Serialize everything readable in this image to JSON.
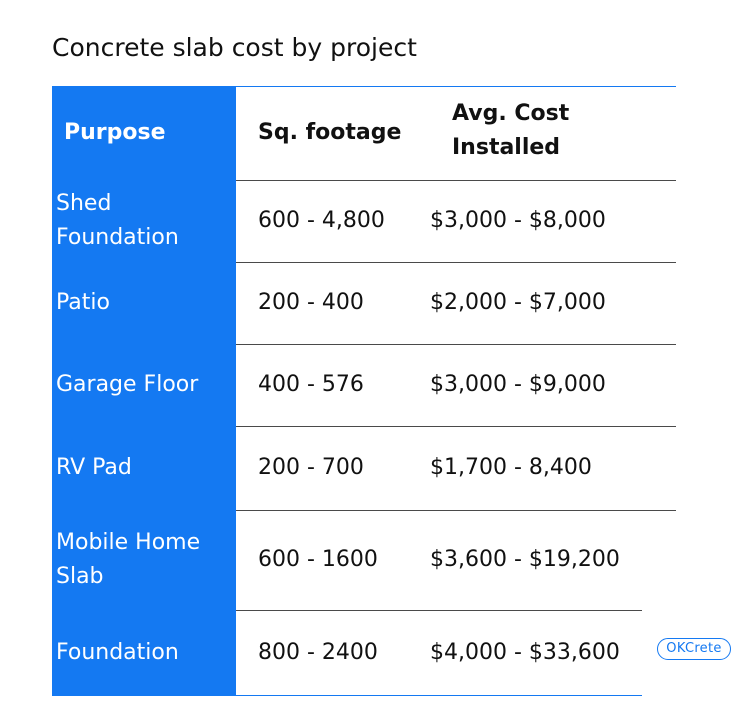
{
  "title": "Concrete slab cost by project",
  "table": {
    "headers": {
      "purpose": "Purpose",
      "sq_footage": "Sq. footage",
      "avg_cost": "Avg. Cost Installed"
    },
    "rows": [
      {
        "purpose": "Shed Foundation",
        "sq_footage": "600 - 4,800",
        "avg_cost": "$3,000 - $8,000"
      },
      {
        "purpose": "Patio",
        "sq_footage": "200 - 400",
        "avg_cost": "$2,000 - $7,000"
      },
      {
        "purpose": "Garage Floor",
        "sq_footage": "400 - 576",
        "avg_cost": "$3,000 - $9,000"
      },
      {
        "purpose": "RV Pad",
        "sq_footage": "200 - 700",
        "avg_cost": "$1,700 - 8,400"
      },
      {
        "purpose": "Mobile Home Slab",
        "sq_footage": "600 - 1600",
        "avg_cost": "$3,600 - $19,200"
      },
      {
        "purpose": "Foundation",
        "sq_footage": "800 - 2400",
        "avg_cost": "$4,000 - $33,600"
      }
    ]
  },
  "logo": "OKCrete",
  "colors": {
    "accent": "#1479f2",
    "text": "#111111",
    "rule": "#4a4a4a"
  }
}
